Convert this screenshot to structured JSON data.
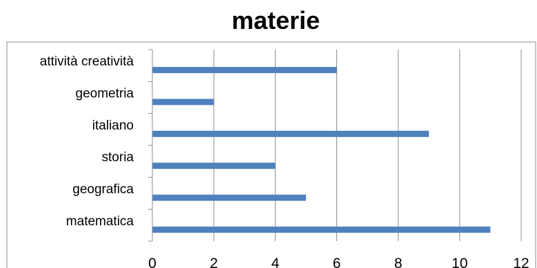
{
  "chart_data": {
    "type": "bar",
    "orientation": "horizontal",
    "title": "materie",
    "categories": [
      "matematica",
      "geografica",
      "storia",
      "italiano",
      "geometria",
      "attività creatività"
    ],
    "values": [
      11,
      5,
      4,
      9,
      2,
      6
    ],
    "xlim": [
      0,
      12
    ],
    "xticks": [
      0,
      2,
      4,
      6,
      8,
      10,
      12
    ],
    "xlabel": "",
    "ylabel": "",
    "grid": "vertical",
    "legend": "none",
    "bar_color": "#4f81bd",
    "grid_color": "#8c8c8c"
  }
}
